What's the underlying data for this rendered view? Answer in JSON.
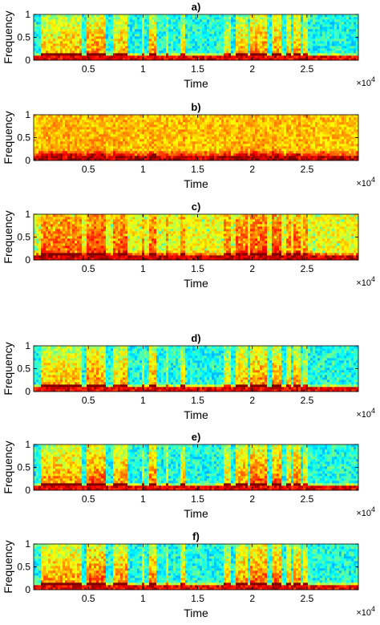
{
  "chart_data": [
    {
      "type": "heatmap",
      "title": "a)",
      "xlabel": "Time",
      "ylabel": "Frequency",
      "xlim": [
        0,
        29700
      ],
      "ylim": [
        0,
        1
      ],
      "x_ticks": [
        {
          "v": 5000,
          "label": "0.5"
        },
        {
          "v": 10000,
          "label": "1"
        },
        {
          "v": 15000,
          "label": "1.5"
        },
        {
          "v": 20000,
          "label": "2"
        },
        {
          "v": 25000,
          "label": "2.5"
        }
      ],
      "y_ticks": [
        {
          "v": 0,
          "label": "0"
        },
        {
          "v": 0.5,
          "label": "0.5"
        },
        {
          "v": 1,
          "label": "1"
        }
      ],
      "x_multiplier": {
        "base": "×10",
        "exp": "4"
      },
      "colormap": "jet",
      "intensity": "clean"
    },
    {
      "type": "heatmap",
      "title": "b)",
      "xlabel": "Time",
      "ylabel": "Frequency",
      "xlim": [
        0,
        29700
      ],
      "ylim": [
        0,
        1
      ],
      "x_ticks": [
        {
          "v": 5000,
          "label": "0.5"
        },
        {
          "v": 10000,
          "label": "1"
        },
        {
          "v": 15000,
          "label": "1.5"
        },
        {
          "v": 20000,
          "label": "2"
        },
        {
          "v": 25000,
          "label": "2.5"
        }
      ],
      "y_ticks": [
        {
          "v": 0,
          "label": "0"
        },
        {
          "v": 0.5,
          "label": "0.5"
        },
        {
          "v": 1,
          "label": "1"
        }
      ],
      "x_multiplier": {
        "base": "×10",
        "exp": "4"
      },
      "colormap": "jet",
      "intensity": "noisy-heavy"
    },
    {
      "type": "heatmap",
      "title": "c)",
      "xlabel": "Time",
      "ylabel": "Frequency",
      "xlim": [
        0,
        29700
      ],
      "ylim": [
        0,
        1
      ],
      "x_ticks": [
        {
          "v": 5000,
          "label": "0.5"
        },
        {
          "v": 10000,
          "label": "1"
        },
        {
          "v": 15000,
          "label": "1.5"
        },
        {
          "v": 20000,
          "label": "2"
        },
        {
          "v": 25000,
          "label": "2.5"
        }
      ],
      "y_ticks": [
        {
          "v": 0,
          "label": "0"
        },
        {
          "v": 0.5,
          "label": "0.5"
        },
        {
          "v": 1,
          "label": "1"
        }
      ],
      "x_multiplier": {
        "base": "×10",
        "exp": "4"
      },
      "colormap": "jet",
      "intensity": "noisy-medium"
    },
    {
      "type": "heatmap",
      "title": "d)",
      "xlabel": "Time",
      "ylabel": "Frequency",
      "xlim": [
        0,
        29700
      ],
      "ylim": [
        0,
        1
      ],
      "x_ticks": [
        {
          "v": 5000,
          "label": "0.5"
        },
        {
          "v": 10000,
          "label": "1"
        },
        {
          "v": 15000,
          "label": "1.5"
        },
        {
          "v": 20000,
          "label": "2"
        },
        {
          "v": 25000,
          "label": "2.5"
        }
      ],
      "y_ticks": [
        {
          "v": 0,
          "label": "0"
        },
        {
          "v": 0.5,
          "label": "0.5"
        },
        {
          "v": 1,
          "label": "1"
        }
      ],
      "x_multiplier": {
        "base": "×10",
        "exp": "4"
      },
      "colormap": "jet",
      "intensity": "clean"
    },
    {
      "type": "heatmap",
      "title": "e)",
      "xlabel": "Time",
      "ylabel": "Frequency",
      "xlim": [
        0,
        29700
      ],
      "ylim": [
        0,
        1
      ],
      "x_ticks": [
        {
          "v": 5000,
          "label": "0.5"
        },
        {
          "v": 10000,
          "label": "1"
        },
        {
          "v": 15000,
          "label": "1.5"
        },
        {
          "v": 20000,
          "label": "2"
        },
        {
          "v": 25000,
          "label": "2.5"
        }
      ],
      "y_ticks": [
        {
          "v": 0,
          "label": "0"
        },
        {
          "v": 0.5,
          "label": "0.5"
        },
        {
          "v": 1,
          "label": "1"
        }
      ],
      "x_multiplier": {
        "base": "×10",
        "exp": "4"
      },
      "colormap": "jet",
      "intensity": "enhanced"
    },
    {
      "type": "heatmap",
      "title": "f)",
      "xlabel": "Time",
      "ylabel": "Frequency",
      "xlim": [
        0,
        29700
      ],
      "ylim": [
        0,
        1
      ],
      "x_ticks": [
        {
          "v": 5000,
          "label": "0.5"
        },
        {
          "v": 10000,
          "label": "1"
        },
        {
          "v": 15000,
          "label": "1.5"
        },
        {
          "v": 20000,
          "label": "2"
        },
        {
          "v": 25000,
          "label": "2.5"
        }
      ],
      "y_ticks": [
        {
          "v": 0,
          "label": "0"
        },
        {
          "v": 0.5,
          "label": "0.5"
        },
        {
          "v": 1,
          "label": "1"
        }
      ],
      "x_multiplier": {
        "base": "×10",
        "exp": "4"
      },
      "colormap": "jet",
      "intensity": "enhanced"
    }
  ]
}
